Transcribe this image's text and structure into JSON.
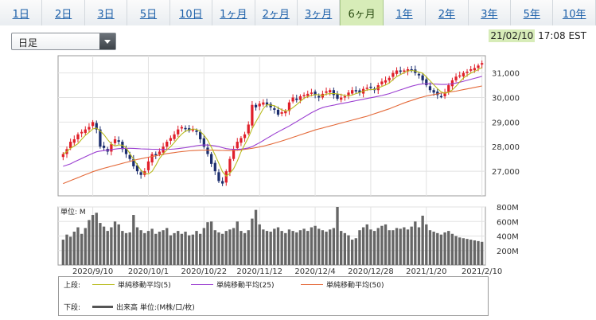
{
  "tabs": [
    {
      "label": "1日",
      "active": false
    },
    {
      "label": "2日",
      "active": false
    },
    {
      "label": "3日",
      "active": false
    },
    {
      "label": "5日",
      "active": false
    },
    {
      "label": "10日",
      "active": false
    },
    {
      "label": "1ヶ月",
      "active": false
    },
    {
      "label": "2ヶ月",
      "active": false
    },
    {
      "label": "3ヶ月",
      "active": false
    },
    {
      "label": "6ヶ月",
      "active": true
    },
    {
      "label": "1年",
      "active": false
    },
    {
      "label": "2年",
      "active": false
    },
    {
      "label": "3年",
      "active": false
    },
    {
      "label": "5年",
      "active": false
    },
    {
      "label": "10年",
      "active": false
    }
  ],
  "period_select": {
    "value": "日足"
  },
  "timestamp": {
    "date": "21/02/10",
    "time": "17:08 EST"
  },
  "legend": {
    "upper_label": "上段:",
    "lower_label": "下段:",
    "ma5": "単純移動平均(5)",
    "ma25": "単純移動平均(25)",
    "ma50": "単純移動平均(50)",
    "volume": "出来高 単位:(M株/口/枚)"
  },
  "colors": {
    "up": "#e0202a",
    "down": "#1c2e6e",
    "ma5": "#b8bb1d",
    "ma25": "#9b3fd1",
    "ma50": "#e46a3a",
    "volume": "#666666"
  },
  "chart_data": {
    "type": "candlestick",
    "price_axis": {
      "ticks": [
        27000,
        28000,
        29000,
        30000,
        31000
      ],
      "ylim": [
        26000,
        31700
      ]
    },
    "volume_axis": {
      "unit_label": "単位: M",
      "ticks": [
        200,
        400,
        600,
        800
      ],
      "tick_labels": [
        "200M",
        "400M",
        "600M",
        "800M"
      ],
      "ylim": [
        0,
        800
      ]
    },
    "x_labels": [
      {
        "index": 8,
        "label": "2020/9/10"
      },
      {
        "index": 23,
        "label": "2020/10/1"
      },
      {
        "index": 38,
        "label": "2020/10/22"
      },
      {
        "index": 53,
        "label": "2020/11/12"
      },
      {
        "index": 68,
        "label": "2020/12/4"
      },
      {
        "index": 83,
        "label": "2020/12/28"
      },
      {
        "index": 98,
        "label": "2021/1/20"
      },
      {
        "index": 113,
        "label": "2021/2/10"
      }
    ],
    "close": [
      27700,
      27900,
      28200,
      28300,
      28500,
      28600,
      28700,
      28800,
      29000,
      28700,
      28000,
      27950,
      27800,
      28100,
      28300,
      28200,
      27900,
      27700,
      27500,
      27200,
      27000,
      26850,
      27000,
      27400,
      27700,
      27650,
      27800,
      28000,
      28200,
      28350,
      28500,
      28700,
      28800,
      28750,
      28650,
      28700,
      28600,
      28300,
      28000,
      27700,
      27300,
      27000,
      26600,
      26500,
      27000,
      27500,
      27900,
      28200,
      28350,
      28500,
      28900,
      29700,
      29600,
      29750,
      29800,
      29700,
      29600,
      29500,
      29300,
      29400,
      29450,
      29800,
      30000,
      29900,
      30050,
      30100,
      30150,
      30200,
      30100,
      30000,
      30150,
      30250,
      30300,
      30100,
      29950,
      30000,
      30050,
      30200,
      30300,
      30250,
      30200,
      30350,
      30400,
      30400,
      30300,
      30500,
      30650,
      30700,
      30800,
      31000,
      31100,
      31050,
      31100,
      31150,
      31100,
      31000,
      30900,
      30700,
      30500,
      30300,
      30200,
      30100,
      30050,
      30200,
      30500,
      30700,
      30850,
      30900,
      31000,
      31050,
      31150,
      31200,
      31300,
      31400
    ],
    "ma5": [
      27700,
      27800,
      27933,
      28025,
      28120,
      28300,
      28460,
      28580,
      28720,
      28760,
      28640,
      28490,
      28290,
      28110,
      28030,
      28070,
      28060,
      27960,
      27720,
      27500,
      27260,
      27050,
      26910,
      26890,
      26990,
      27240,
      27520,
      27710,
      27870,
      28000,
      28170,
      28350,
      28510,
      28630,
      28680,
      28720,
      28700,
      28620,
      28470,
      28260,
      27980,
      27660,
      27320,
      26980,
      26800,
      26920,
      27100,
      27420,
      27790,
      28090,
      28370,
      28730,
      29010,
      29270,
      29550,
      29710,
      29690,
      29670,
      29580,
      29500,
      29450,
      29480,
      29590,
      29710,
      29840,
      29970,
      30040,
      30080,
      30120,
      30110,
      30080,
      30140,
      30160,
      30160,
      30150,
      30120,
      30080,
      30060,
      30100,
      30160,
      30200,
      30260,
      30310,
      30320,
      30330,
      30390,
      30450,
      30510,
      30590,
      30730,
      30850,
      30930,
      31010,
      31080,
      31100,
      31080,
      31030,
      30990,
      30840,
      30680,
      30520,
      30360,
      30230,
      30170,
      30210,
      30310,
      30460,
      30630,
      30790,
      30900,
      30990,
      31060,
      31140,
      31220
    ],
    "ma25": [
      27200,
      27250,
      27300,
      27380,
      27450,
      27520,
      27590,
      27660,
      27730,
      27790,
      27820,
      27840,
      27860,
      27880,
      27900,
      27920,
      27930,
      27935,
      27935,
      27930,
      27920,
      27910,
      27905,
      27900,
      27895,
      27890,
      27885,
      27885,
      27890,
      27895,
      27905,
      27920,
      27940,
      27960,
      27985,
      28010,
      28040,
      28060,
      28070,
      28065,
      28050,
      28030,
      28000,
      27960,
      27920,
      27900,
      27890,
      27890,
      27900,
      27920,
      27950,
      28000,
      28080,
      28160,
      28250,
      28340,
      28430,
      28520,
      28600,
      28680,
      28760,
      28840,
      28930,
      29020,
      29110,
      29200,
      29290,
      29380,
      29460,
      29530,
      29590,
      29630,
      29660,
      29690,
      29720,
      29750,
      29780,
      29810,
      29840,
      29870,
      29900,
      29930,
      29960,
      29990,
      30020,
      30050,
      30080,
      30120,
      30160,
      30210,
      30260,
      30310,
      30360,
      30410,
      30460,
      30500,
      30530,
      30550,
      30560,
      30560,
      30550,
      30540,
      30530,
      30530,
      30540,
      30560,
      30590,
      30620,
      30660,
      30700,
      30740,
      30780,
      30820,
      30860
    ],
    "ma50": [
      26500,
      26560,
      26620,
      26680,
      26740,
      26800,
      26860,
      26920,
      26980,
      27030,
      27080,
      27120,
      27160,
      27200,
      27240,
      27280,
      27320,
      27360,
      27400,
      27440,
      27480,
      27510,
      27540,
      27570,
      27600,
      27630,
      27660,
      27690,
      27720,
      27740,
      27760,
      27780,
      27800,
      27815,
      27830,
      27840,
      27850,
      27855,
      27860,
      27860,
      27858,
      27855,
      27850,
      27845,
      27842,
      27840,
      27845,
      27855,
      27870,
      27890,
      27910,
      27935,
      27960,
      27990,
      28020,
      28060,
      28100,
      28140,
      28185,
      28230,
      28280,
      28330,
      28380,
      28430,
      28480,
      28530,
      28580,
      28630,
      28680,
      28720,
      28760,
      28800,
      28840,
      28880,
      28920,
      28960,
      29000,
      29040,
      29080,
      29120,
      29160,
      29200,
      29240,
      29290,
      29340,
      29390,
      29440,
      29490,
      29540,
      29600,
      29660,
      29720,
      29780,
      29830,
      29880,
      29930,
      29980,
      30020,
      30060,
      30090,
      30120,
      30150,
      30180,
      30200,
      30220,
      30240,
      30260,
      30290,
      30320,
      30350,
      30380,
      30410,
      30440,
      30470
    ],
    "volume": [
      350,
      420,
      390,
      460,
      520,
      430,
      510,
      620,
      690,
      720,
      580,
      530,
      470,
      520,
      600,
      560,
      470,
      440,
      450,
      690,
      520,
      480,
      440,
      470,
      500,
      430,
      460,
      480,
      510,
      410,
      440,
      470,
      430,
      460,
      410,
      420,
      470,
      430,
      510,
      590,
      600,
      480,
      450,
      430,
      470,
      490,
      510,
      600,
      470,
      440,
      480,
      640,
      760,
      560,
      490,
      470,
      460,
      500,
      520,
      470,
      440,
      490,
      470,
      450,
      480,
      500,
      470,
      520,
      540,
      500,
      480,
      460,
      490,
      510,
      800,
      470,
      440,
      410,
      350,
      370,
      480,
      520,
      560,
      490,
      470,
      510,
      540,
      560,
      480,
      480,
      510,
      500,
      520,
      490,
      530,
      600,
      520,
      680,
      560,
      480,
      460,
      440,
      420,
      450,
      470,
      430,
      400,
      380,
      370,
      360,
      350,
      340,
      330,
      320
    ]
  }
}
